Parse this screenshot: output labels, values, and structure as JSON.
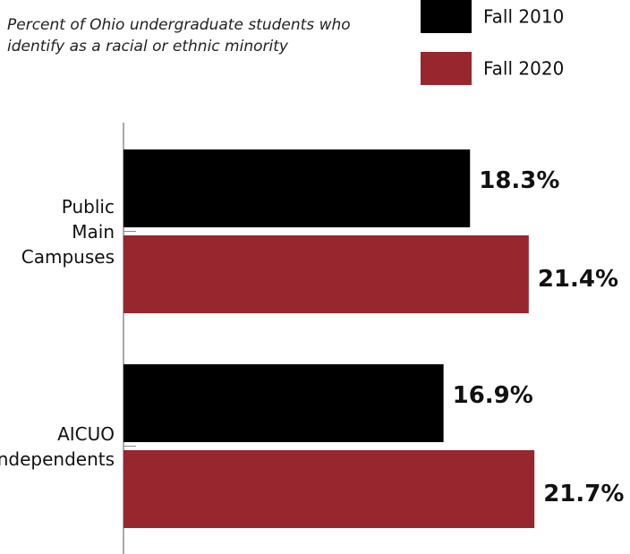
{
  "chart_data": {
    "type": "hbar",
    "title": "Percent of Ohio undergraduate students who identify as a racial or ethnic minority",
    "categories": [
      "Public Main Campuses",
      "AICUO Independents"
    ],
    "series": [
      {
        "name": "Fall 2010",
        "color": "#000000",
        "values": [
          18.3,
          16.9
        ],
        "value_labels": [
          "18.3%",
          "16.9%"
        ]
      },
      {
        "name": "Fall 2020",
        "color": "#98262e",
        "values": [
          21.4,
          21.7
        ],
        "value_labels": [
          "21.4%",
          "21.7%"
        ]
      }
    ],
    "xlim": [
      0,
      26.7
    ]
  }
}
